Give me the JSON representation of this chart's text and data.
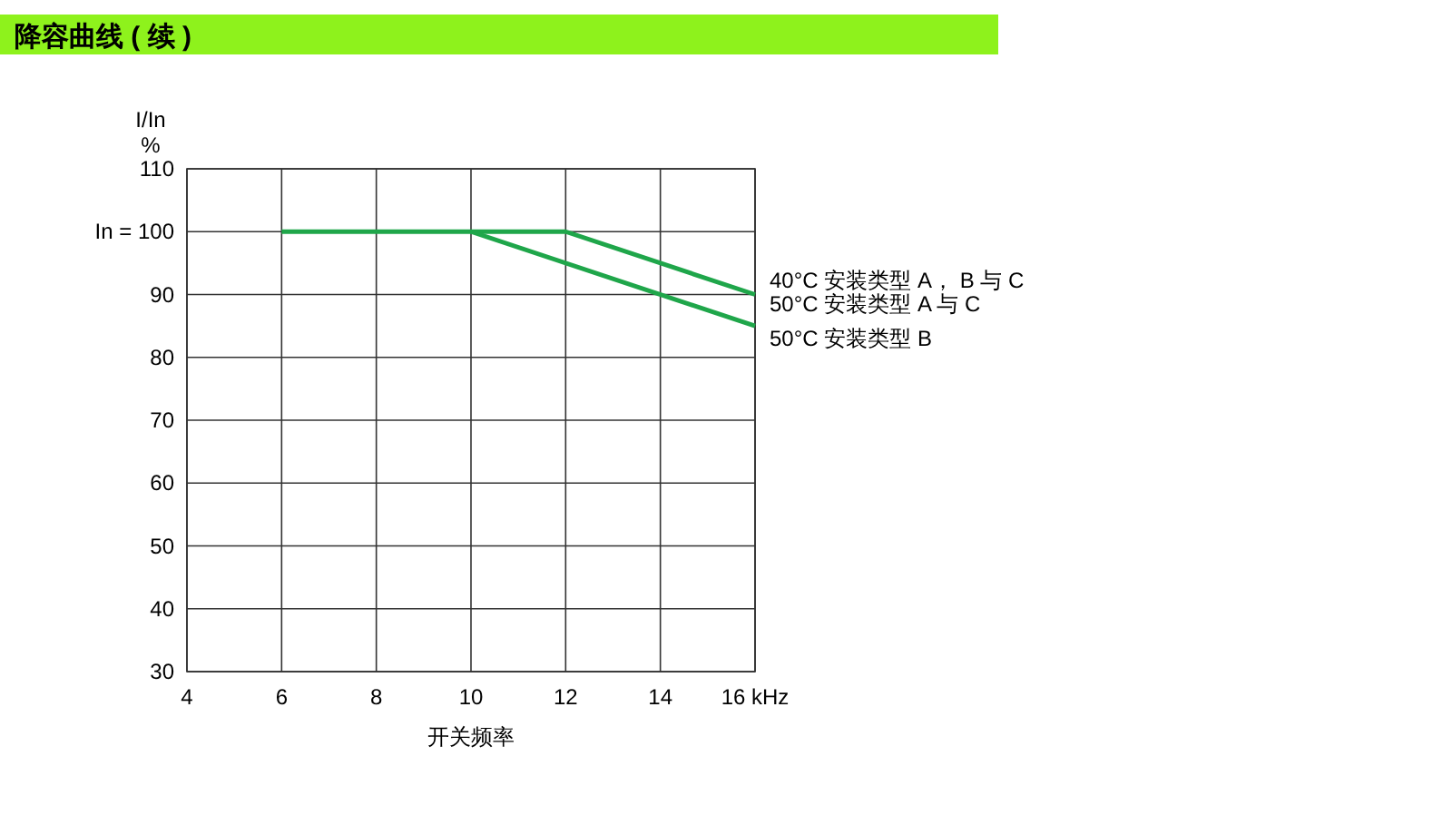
{
  "chart_data": {
    "type": "line",
    "title": "降容曲线 ( 续 )",
    "xlabel": "开关频率",
    "ylabel": "I/In\n%",
    "xlim": [
      4,
      16
    ],
    "ylim": [
      30,
      110
    ],
    "xticks": [
      4,
      6,
      8,
      10,
      12,
      14,
      {
        "value": 16,
        "label": "16 kHz"
      }
    ],
    "yticks": [
      30,
      40,
      50,
      60,
      70,
      80,
      90,
      {
        "value": 100,
        "label": "In = 100"
      },
      110
    ],
    "grid": true,
    "series": [
      {
        "name": "40°C 安装类型 A， B 与 C",
        "color": "#1fa64a",
        "x": [
          6,
          12,
          16
        ],
        "values": [
          100,
          100,
          90
        ]
      },
      {
        "name": "50°C 安装类型 B",
        "color": "#1fa64a",
        "x": [
          10,
          16
        ],
        "values": [
          100,
          85
        ]
      }
    ],
    "annotations": [
      {
        "text": "50°C 安装类型 A 与 C",
        "x": 16,
        "y": 90
      }
    ]
  }
}
